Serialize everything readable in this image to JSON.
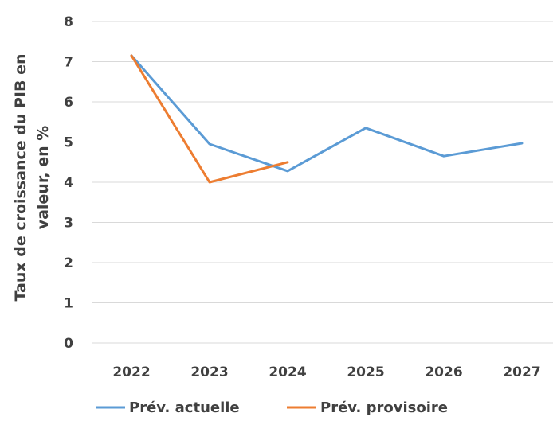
{
  "chart_data": {
    "type": "line",
    "title": "",
    "xlabel": "",
    "ylabel_lines": [
      "Taux de croissance du PIB en",
      "valeur, en %"
    ],
    "categories": [
      "2022",
      "2023",
      "2024",
      "2025",
      "2026",
      "2027"
    ],
    "yticks": [
      "0",
      "1",
      "2",
      "3",
      "4",
      "5",
      "6",
      "7",
      "8"
    ],
    "ylim": [
      0,
      8
    ],
    "grid": true,
    "legend_position": "bottom",
    "series": [
      {
        "name": "Prév. actuelle",
        "color": "#5b9bd5",
        "values": [
          7.15,
          4.95,
          4.28,
          5.35,
          4.65,
          4.97
        ]
      },
      {
        "name": "Prév. provisoire",
        "color": "#ed7d31",
        "values": [
          7.15,
          4.0,
          4.5,
          null,
          null,
          null
        ]
      }
    ]
  }
}
